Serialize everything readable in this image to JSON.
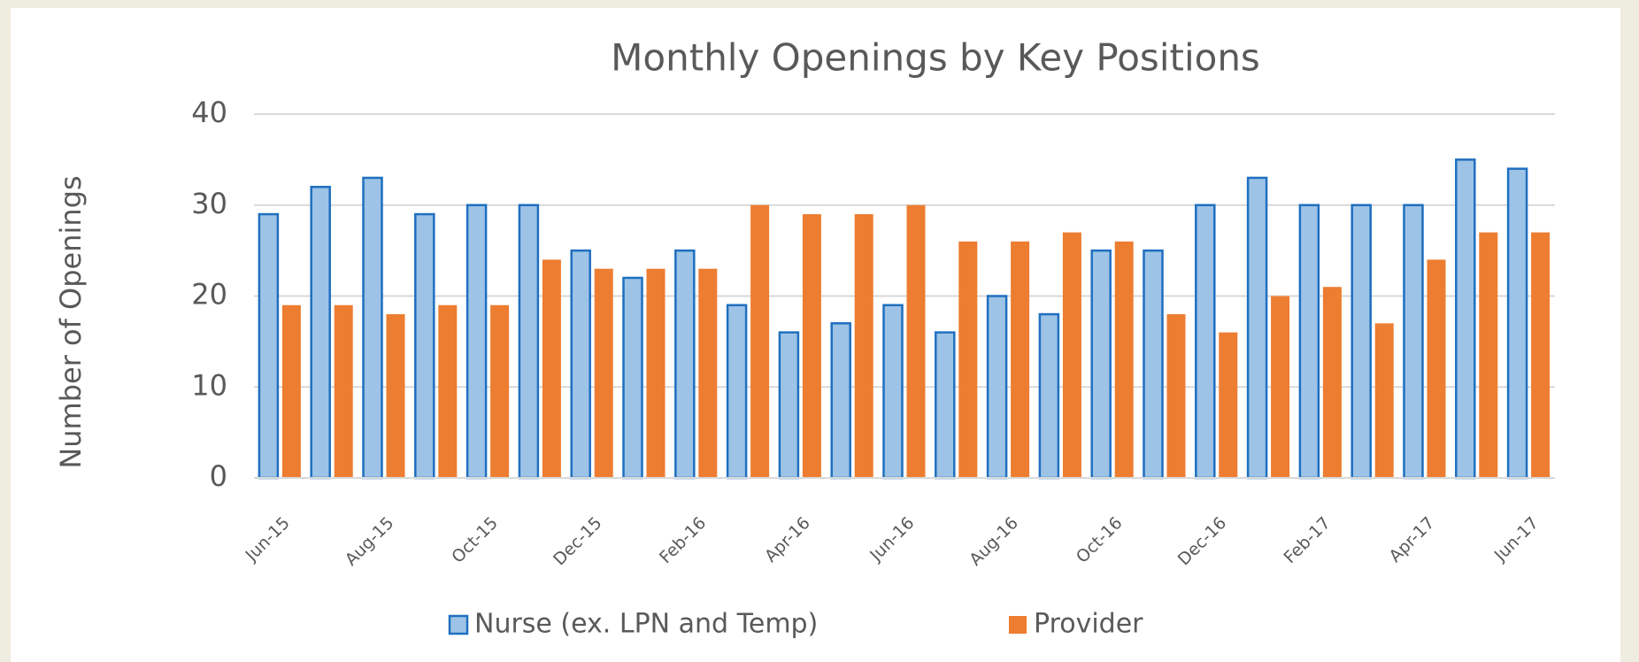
{
  "chart_data": {
    "type": "bar",
    "title": "Monthly Openings by Key Positions",
    "y_label": "Number of Openings",
    "categories": [
      "Jun-15",
      null,
      "Aug-15",
      null,
      "Oct-15",
      null,
      "Dec-15",
      null,
      "Feb-16",
      null,
      "Apr-16",
      null,
      "Jun-16",
      null,
      "Aug-16",
      null,
      "Oct-16",
      null,
      "Dec-16",
      null,
      "Feb-17",
      null,
      "Apr-17",
      null,
      "Jun-17"
    ],
    "series": [
      {
        "name": "Nurse (ex. LPN and Temp)",
        "color": "#9dc3e6",
        "edge_color": "#1f6fc0",
        "values": [
          29,
          32,
          33,
          29,
          30,
          30,
          25,
          22,
          25,
          19,
          16,
          17,
          19,
          16,
          20,
          18,
          25,
          25,
          30,
          33,
          30,
          30,
          30,
          35,
          34
        ]
      },
      {
        "name": "Provider",
        "color": "#ed7d31",
        "values": [
          19,
          19,
          18,
          19,
          19,
          24,
          23,
          23,
          23,
          30,
          29,
          29,
          30,
          26,
          26,
          27,
          26,
          18,
          16,
          20,
          21,
          17,
          24,
          27,
          27
        ]
      }
    ],
    "ylim": [
      0,
      40
    ],
    "yticks": [
      0,
      10,
      20,
      30,
      40
    ],
    "grid": true,
    "legend": "bottom"
  }
}
